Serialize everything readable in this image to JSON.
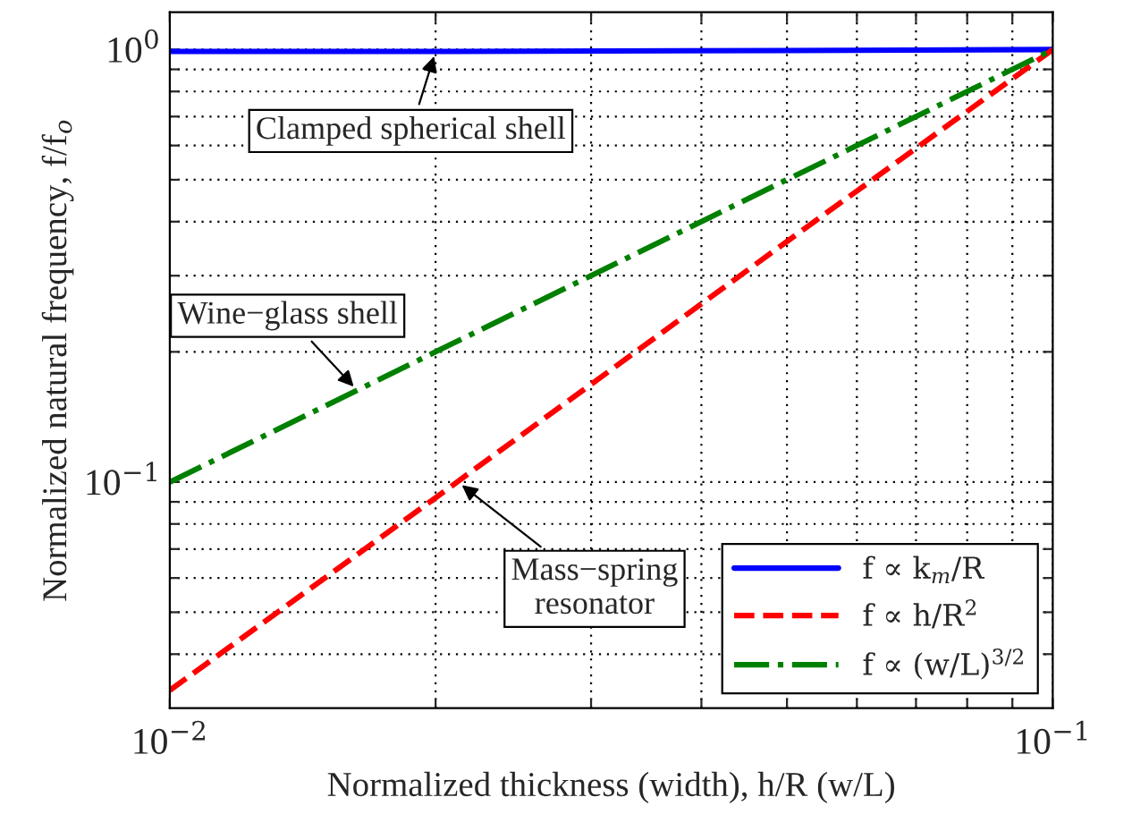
{
  "chart_data": {
    "type": "line",
    "xlabel": "Normalized thickness (width), h/R (w/L)",
    "ylabel": "Normalized natural frequency, f/f$_{o}$",
    "log": "xy",
    "xlim": [
      0.01,
      0.1
    ],
    "xticks": [
      {
        "value": 0.01,
        "label": "10$^{−2}$"
      },
      {
        "value": 0.02,
        "label": null
      },
      {
        "value": 0.03,
        "label": null
      },
      {
        "value": 0.04,
        "label": null
      },
      {
        "value": 0.05,
        "label": null
      },
      {
        "value": 0.06,
        "label": null
      },
      {
        "value": 0.07,
        "label": null
      },
      {
        "value": 0.08,
        "label": null
      },
      {
        "value": 0.09,
        "label": null
      },
      {
        "value": 0.1,
        "label": "10$^{−1}$"
      }
    ],
    "ylim": [
      0.03,
      1.22
    ],
    "yticks": [
      {
        "value": 0.04,
        "label": null
      },
      {
        "value": 0.05,
        "label": null
      },
      {
        "value": 0.06,
        "label": null
      },
      {
        "value": 0.07,
        "label": null
      },
      {
        "value": 0.08,
        "label": null
      },
      {
        "value": 0.09,
        "label": null
      },
      {
        "value": 0.1,
        "label": "10$^{−1}$"
      },
      {
        "value": 0.2,
        "label": null
      },
      {
        "value": 0.3,
        "label": null
      },
      {
        "value": 0.4,
        "label": null
      },
      {
        "value": 0.5,
        "label": null
      },
      {
        "value": 0.6,
        "label": null
      },
      {
        "value": 0.7,
        "label": null
      },
      {
        "value": 0.8,
        "label": null
      },
      {
        "value": 0.9,
        "label": null
      },
      {
        "value": 1,
        "label": "10$^{0}$"
      }
    ],
    "grid": true,
    "legend": "bottom right",
    "series": [
      {
        "name": "f ∝ k$_{m}$/R",
        "color": "#0000ff",
        "line_style": "solid",
        "x": [
          0.01,
          0.02,
          0.05,
          0.1
        ],
        "values": [
          0.99,
          0.99,
          0.995,
          1.0
        ]
      },
      {
        "name": "f ∝ h/R$^{2}$",
        "color": "#ff0000",
        "line_style": "dashed",
        "x": [
          0.01,
          0.02,
          0.05,
          0.1
        ],
        "values": [
          0.033,
          0.092,
          0.36,
          1.0
        ]
      },
      {
        "name": "f ∝ (w/L)$^{3/2}$",
        "color": "#008000",
        "line_style": "dashdot",
        "x": [
          0.01,
          0.02,
          0.05,
          0.1
        ],
        "values": [
          0.1,
          0.2,
          0.5,
          1.0
        ]
      }
    ],
    "annotations": [
      {
        "text": "Clamped spherical shell",
        "x": 0.02,
        "y": 0.99
      },
      {
        "text": "Wine−glass shell",
        "x": 0.0163,
        "y": 0.163
      },
      {
        "text": "Mass−spring\nresonator",
        "x": 0.0212,
        "y": 0.1
      }
    ]
  }
}
